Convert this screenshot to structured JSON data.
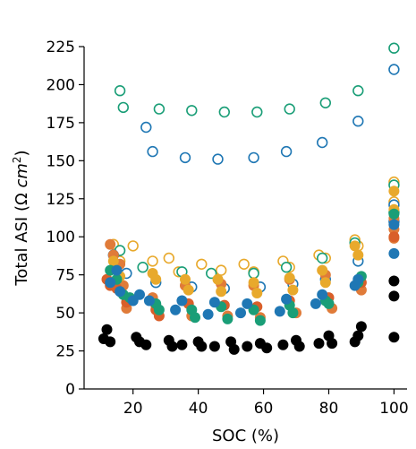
{
  "chart_data": {
    "type": "scatter",
    "title": "",
    "xlabel": "SOC (%)",
    "ylabel_main": "Total ASI (Ω ",
    "ylabel_unit_base": "cm",
    "ylabel_unit_exp": "2",
    "ylabel_close": ")",
    "xlim": [
      5,
      104
    ],
    "ylim": [
      0,
      225
    ],
    "xticks": [
      20,
      40,
      60,
      80,
      100
    ],
    "yticks": [
      0,
      25,
      50,
      75,
      100,
      125,
      150,
      175,
      200,
      225
    ],
    "grid": false,
    "legend": "none",
    "series": [
      {
        "marker": "open",
        "color": "#1a9e77",
        "points": [
          [
            16,
            196
          ],
          [
            17,
            185
          ],
          [
            28,
            184
          ],
          [
            38,
            183
          ],
          [
            48,
            182
          ],
          [
            58,
            182
          ],
          [
            68,
            184
          ],
          [
            79,
            188
          ],
          [
            89,
            196
          ],
          [
            100,
            224
          ]
        ]
      },
      {
        "marker": "open",
        "color": "#1f77b4",
        "points": [
          [
            24,
            172
          ],
          [
            26,
            156
          ],
          [
            36,
            152
          ],
          [
            46,
            151
          ],
          [
            57,
            152
          ],
          [
            67,
            156
          ],
          [
            78,
            162
          ],
          [
            89,
            176
          ],
          [
            100,
            210
          ]
        ]
      },
      {
        "marker": "open",
        "color": "#e8a92c",
        "points": [
          [
            14,
            95
          ],
          [
            15,
            89
          ],
          [
            16,
            84
          ],
          [
            20,
            94
          ],
          [
            26,
            84
          ],
          [
            31,
            86
          ],
          [
            34,
            77
          ],
          [
            41,
            82
          ],
          [
            47,
            78
          ],
          [
            54,
            82
          ],
          [
            57,
            77
          ],
          [
            66,
            84
          ],
          [
            68,
            80
          ],
          [
            77,
            88
          ],
          [
            79,
            86
          ],
          [
            88,
            98
          ],
          [
            89,
            94
          ],
          [
            100,
            136
          ],
          [
            100,
            123
          ]
        ]
      },
      {
        "marker": "open",
        "color": "#1a9e77",
        "points": [
          [
            16,
            91
          ],
          [
            23,
            80
          ],
          [
            35,
            77
          ],
          [
            44,
            76
          ],
          [
            57,
            76
          ],
          [
            67,
            80
          ],
          [
            78,
            86
          ],
          [
            88,
            96
          ],
          [
            100,
            134
          ],
          [
            100,
            116
          ]
        ]
      },
      {
        "marker": "open",
        "color": "#1f77b4",
        "points": [
          [
            14,
            88
          ],
          [
            18,
            76
          ],
          [
            27,
            70
          ],
          [
            38,
            67
          ],
          [
            48,
            66
          ],
          [
            59,
            67
          ],
          [
            69,
            69
          ],
          [
            79,
            72
          ],
          [
            89,
            84
          ],
          [
            100,
            121
          ],
          [
            100,
            110
          ]
        ]
      },
      {
        "marker": "filled",
        "color": "#e07b39",
        "points": [
          [
            13,
            95
          ],
          [
            14,
            88
          ],
          [
            16,
            82
          ],
          [
            17,
            68
          ],
          [
            18,
            53
          ],
          [
            26,
            60
          ],
          [
            27,
            55
          ],
          [
            36,
            68
          ],
          [
            38,
            48
          ],
          [
            47,
            69
          ],
          [
            49,
            48
          ],
          [
            57,
            68
          ],
          [
            59,
            47
          ],
          [
            68,
            72
          ],
          [
            70,
            50
          ],
          [
            79,
            75
          ],
          [
            81,
            53
          ],
          [
            89,
            70
          ],
          [
            90,
            65
          ],
          [
            100,
            112
          ],
          [
            100,
            105
          ],
          [
            100,
            99
          ]
        ]
      },
      {
        "marker": "filled",
        "color": "#d95f2a",
        "points": [
          [
            12,
            72
          ],
          [
            13,
            68
          ],
          [
            15,
            66
          ],
          [
            18,
            57
          ],
          [
            27,
            52
          ],
          [
            28,
            48
          ],
          [
            37,
            56
          ],
          [
            48,
            55
          ],
          [
            58,
            54
          ],
          [
            68,
            58
          ],
          [
            80,
            60
          ],
          [
            90,
            70
          ],
          [
            100,
            100
          ]
        ]
      },
      {
        "marker": "filled",
        "color": "#e8a92c",
        "points": [
          [
            14,
            84
          ],
          [
            15,
            78
          ],
          [
            16,
            74
          ],
          [
            26,
            76
          ],
          [
            27,
            72
          ],
          [
            36,
            72
          ],
          [
            37,
            65
          ],
          [
            46,
            72
          ],
          [
            47,
            64
          ],
          [
            57,
            70
          ],
          [
            58,
            63
          ],
          [
            68,
            73
          ],
          [
            69,
            65
          ],
          [
            78,
            78
          ],
          [
            79,
            70
          ],
          [
            88,
            94
          ],
          [
            89,
            88
          ],
          [
            100,
            130
          ],
          [
            100,
            118
          ]
        ]
      },
      {
        "marker": "filled",
        "color": "#1a9e77",
        "points": [
          [
            13,
            78
          ],
          [
            15,
            72
          ],
          [
            17,
            62
          ],
          [
            19,
            60
          ],
          [
            27,
            56
          ],
          [
            28,
            52
          ],
          [
            38,
            52
          ],
          [
            39,
            47
          ],
          [
            47,
            54
          ],
          [
            49,
            46
          ],
          [
            57,
            52
          ],
          [
            59,
            45
          ],
          [
            68,
            55
          ],
          [
            69,
            50
          ],
          [
            79,
            58
          ],
          [
            80,
            56
          ],
          [
            89,
            70
          ],
          [
            90,
            74
          ],
          [
            100,
            115
          ]
        ]
      },
      {
        "marker": "filled",
        "color": "#1f77b4",
        "points": [
          [
            13,
            70
          ],
          [
            15,
            78
          ],
          [
            16,
            64
          ],
          [
            20,
            58
          ],
          [
            22,
            62
          ],
          [
            25,
            58
          ],
          [
            33,
            52
          ],
          [
            35,
            58
          ],
          [
            43,
            49
          ],
          [
            45,
            57
          ],
          [
            53,
            50
          ],
          [
            55,
            56
          ],
          [
            65,
            51
          ],
          [
            67,
            59
          ],
          [
            76,
            56
          ],
          [
            78,
            62
          ],
          [
            88,
            68
          ],
          [
            89,
            72
          ],
          [
            100,
            89
          ],
          [
            100,
            108
          ]
        ]
      },
      {
        "marker": "filled",
        "color": "#000000",
        "points": [
          [
            11,
            33
          ],
          [
            12,
            39
          ],
          [
            13,
            31
          ],
          [
            21,
            34
          ],
          [
            22,
            31
          ],
          [
            24,
            29
          ],
          [
            31,
            32
          ],
          [
            32,
            28
          ],
          [
            35,
            29
          ],
          [
            40,
            31
          ],
          [
            41,
            28
          ],
          [
            45,
            28
          ],
          [
            50,
            31
          ],
          [
            51,
            26
          ],
          [
            55,
            28
          ],
          [
            59,
            30
          ],
          [
            61,
            27
          ],
          [
            66,
            29
          ],
          [
            70,
            32
          ],
          [
            71,
            28
          ],
          [
            77,
            30
          ],
          [
            80,
            35
          ],
          [
            81,
            30
          ],
          [
            88,
            31
          ],
          [
            89,
            35
          ],
          [
            90,
            41
          ],
          [
            100,
            71
          ],
          [
            100,
            61
          ],
          [
            100,
            34
          ]
        ]
      }
    ]
  }
}
